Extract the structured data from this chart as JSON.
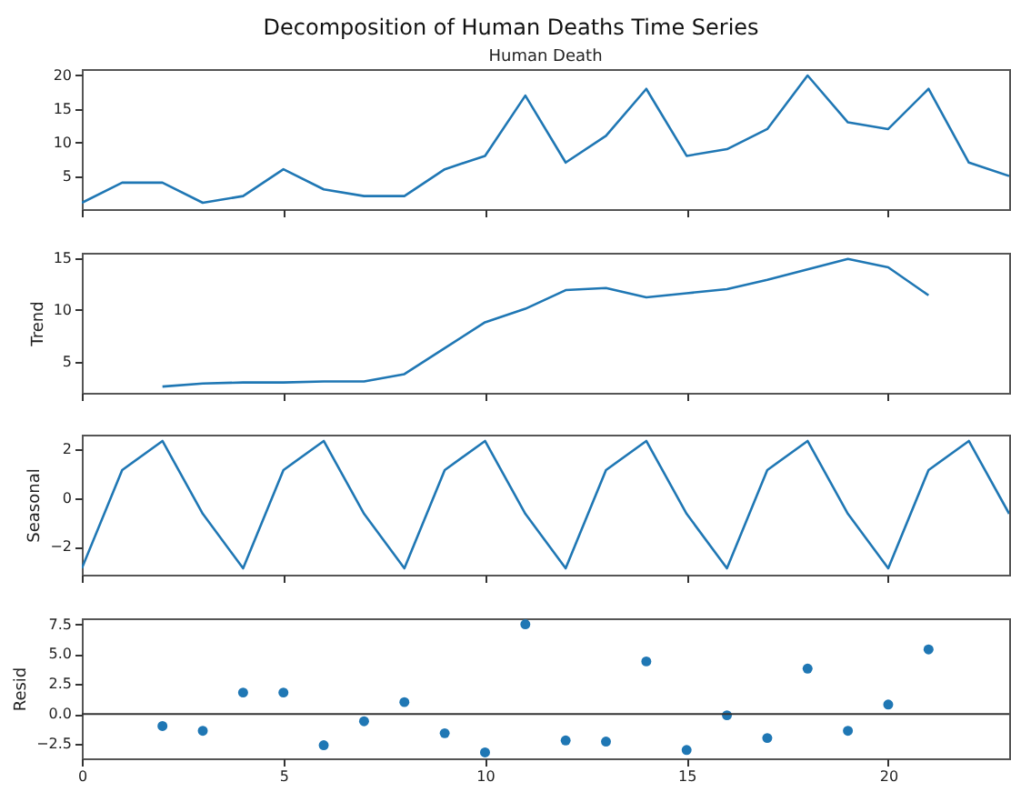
{
  "chart_data": [
    {
      "type": "line",
      "title": "Decomposition of Human Deaths Time Series",
      "subtitle": "Human Death",
      "x": [
        0,
        1,
        2,
        3,
        4,
        5,
        6,
        7,
        8,
        9,
        10,
        11,
        12,
        13,
        14,
        15,
        16,
        17,
        18,
        19,
        20,
        21,
        22,
        23
      ],
      "series": [
        {
          "color": "#1f77b4",
          "values": [
            1,
            4,
            4,
            1,
            2,
            6,
            3,
            2,
            2,
            6,
            8,
            17,
            7,
            11,
            18,
            8,
            9,
            12,
            20,
            13,
            12,
            18,
            7,
            5
          ]
        }
      ],
      "xlim": [
        0,
        23
      ],
      "xticks": [
        0,
        5,
        10,
        15,
        20
      ],
      "ylim": [
        0.05,
        20.95
      ],
      "yticks": [
        5,
        10,
        15,
        20
      ],
      "tick_labels": "y",
      "grid": false
    },
    {
      "type": "line",
      "ylabel": "Trend",
      "x": [
        2,
        3,
        4,
        5,
        6,
        7,
        8,
        9,
        10,
        11,
        12,
        13,
        14,
        15,
        16,
        17,
        18,
        19,
        20,
        21
      ],
      "series": [
        {
          "color": "#1f77b4",
          "values": [
            2.6,
            2.9,
            3.0,
            3.0,
            3.1,
            3.1,
            3.8,
            6.3,
            8.8,
            10.1,
            11.9,
            12.1,
            11.2,
            11.6,
            12.0,
            12.9,
            13.9,
            14.9,
            14.1,
            11.4
          ]
        }
      ],
      "xlim": [
        0,
        23
      ],
      "xticks": [
        0,
        5,
        10,
        15,
        20
      ],
      "ylim": [
        2.0,
        15.5
      ],
      "yticks": [
        5,
        10,
        15
      ],
      "tick_labels": "y",
      "grid": false
    },
    {
      "type": "line",
      "ylabel": "Seasonal",
      "x": [
        0,
        1,
        2,
        3,
        4,
        5,
        6,
        7,
        8,
        9,
        10,
        11,
        12,
        13,
        14,
        15,
        16,
        17,
        18,
        19,
        20,
        21,
        22,
        23
      ],
      "series": [
        {
          "color": "#1f77b4",
          "values": [
            -2.9,
            1.15,
            2.35,
            -0.65,
            -2.9,
            1.15,
            2.35,
            -0.65,
            -2.9,
            1.15,
            2.35,
            -0.65,
            -2.9,
            1.15,
            2.35,
            -0.65,
            -2.9,
            1.15,
            2.35,
            -0.65,
            -2.9,
            1.15,
            2.35,
            -0.65
          ]
        }
      ],
      "xlim": [
        0,
        23
      ],
      "xticks": [
        0,
        5,
        10,
        15,
        20
      ],
      "ylim": [
        -3.16,
        2.61
      ],
      "yticks": [
        -2,
        0,
        2
      ],
      "tick_labels": "y",
      "grid": false
    },
    {
      "type": "scatter",
      "ylabel": "Resid",
      "marker": "circle",
      "x": [
        2,
        3,
        4,
        5,
        6,
        7,
        8,
        9,
        10,
        11,
        12,
        13,
        14,
        15,
        16,
        17,
        18,
        19,
        20,
        21
      ],
      "series": [
        {
          "color": "#1f77b4",
          "values": [
            -1.0,
            -1.4,
            1.8,
            1.8,
            -2.6,
            -0.6,
            1.0,
            -1.6,
            -3.2,
            7.5,
            -2.2,
            -2.3,
            4.4,
            -3.0,
            -0.1,
            -2.0,
            3.8,
            -1.4,
            0.8,
            5.4
          ]
        }
      ],
      "ref_lines": [
        {
          "axis": "y",
          "value": 0,
          "color": "#333333"
        }
      ],
      "xlim": [
        0,
        23
      ],
      "xticks": [
        0,
        5,
        10,
        15,
        20
      ],
      "ylim": [
        -3.7,
        8.0
      ],
      "yticks": [
        {
          "value": -2.5,
          "label": "−2.5"
        },
        {
          "value": 0,
          "label": "0.0"
        },
        {
          "value": 2.5,
          "label": "2.5"
        },
        {
          "value": 5,
          "label": "5.0"
        },
        {
          "value": 7.5,
          "label": "7.5"
        }
      ],
      "grid": false
    }
  ]
}
